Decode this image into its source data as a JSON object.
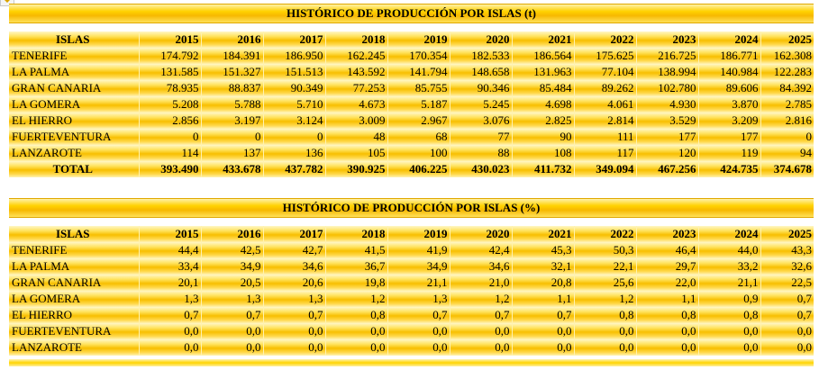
{
  "tables": [
    {
      "title": "HISTÓRICO DE PRODUCCIÓN POR ISLAS (t)",
      "headers": [
        "ISLAS",
        "2015",
        "2016",
        "2017",
        "2018",
        "2019",
        "2020",
        "2021",
        "2022",
        "2023",
        "2024",
        "2025"
      ],
      "rows": [
        [
          "TENERIFE",
          "174.792",
          "184.391",
          "186.950",
          "162.245",
          "170.354",
          "182.533",
          "186.564",
          "175.625",
          "216.725",
          "186.771",
          "162.308"
        ],
        [
          "LA PALMA",
          "131.585",
          "151.327",
          "151.513",
          "143.592",
          "141.794",
          "148.658",
          "131.963",
          "77.104",
          "138.994",
          "140.984",
          "122.283"
        ],
        [
          "GRAN CANARIA",
          "78.935",
          "88.837",
          "90.349",
          "77.253",
          "85.755",
          "90.346",
          "85.484",
          "89.262",
          "102.780",
          "89.606",
          "84.392"
        ],
        [
          "LA GOMERA",
          "5.208",
          "5.788",
          "5.710",
          "4.673",
          "5.187",
          "5.245",
          "4.698",
          "4.061",
          "4.930",
          "3.870",
          "2.785"
        ],
        [
          "EL HIERRO",
          "2.856",
          "3.197",
          "3.124",
          "3.009",
          "2.967",
          "3.076",
          "2.825",
          "2.814",
          "3.529",
          "3.209",
          "2.816"
        ],
        [
          "FUERTEVENTURA",
          "0",
          "0",
          "0",
          "48",
          "68",
          "77",
          "90",
          "111",
          "177",
          "177",
          "0"
        ],
        [
          "LANZAROTE",
          "114",
          "137",
          "136",
          "105",
          "100",
          "88",
          "108",
          "117",
          "120",
          "119",
          "94"
        ]
      ],
      "total": [
        "TOTAL",
        "393.490",
        "433.678",
        "437.782",
        "390.925",
        "406.225",
        "430.023",
        "411.732",
        "349.094",
        "467.256",
        "424.735",
        "374.678"
      ]
    },
    {
      "title": "HISTÓRICO DE PRODUCCIÓN POR ISLAS (%)",
      "headers": [
        "ISLAS",
        "2015",
        "2016",
        "2017",
        "2018",
        "2019",
        "2020",
        "2021",
        "2022",
        "2023",
        "2024",
        "2025"
      ],
      "rows": [
        [
          "TENERIFE",
          "44,4",
          "42,5",
          "42,7",
          "41,5",
          "41,9",
          "42,4",
          "45,3",
          "50,3",
          "46,4",
          "44,0",
          "43,3"
        ],
        [
          "LA PALMA",
          "33,4",
          "34,9",
          "34,6",
          "36,7",
          "34,9",
          "34,6",
          "32,1",
          "22,1",
          "29,7",
          "33,2",
          "32,6"
        ],
        [
          "GRAN CANARIA",
          "20,1",
          "20,5",
          "20,6",
          "19,8",
          "21,1",
          "21,0",
          "20,8",
          "25,6",
          "22,0",
          "21,1",
          "22,5"
        ],
        [
          "LA GOMERA",
          "1,3",
          "1,3",
          "1,3",
          "1,2",
          "1,3",
          "1,2",
          "1,1",
          "1,2",
          "1,1",
          "0,9",
          "0,7"
        ],
        [
          "EL HIERRO",
          "0,7",
          "0,7",
          "0,7",
          "0,8",
          "0,7",
          "0,7",
          "0,7",
          "0,8",
          "0,8",
          "0,8",
          "0,7"
        ],
        [
          "FUERTEVENTURA",
          "0,0",
          "0,0",
          "0,0",
          "0,0",
          "0,0",
          "0,0",
          "0,0",
          "0,0",
          "0,0",
          "0,0",
          "0,0"
        ],
        [
          "LANZAROTE",
          "0,0",
          "0,0",
          "0,0",
          "0,0",
          "0,0",
          "0,0",
          "0,0",
          "0,0",
          "0,0",
          "0,0",
          "0,0"
        ]
      ]
    }
  ]
}
